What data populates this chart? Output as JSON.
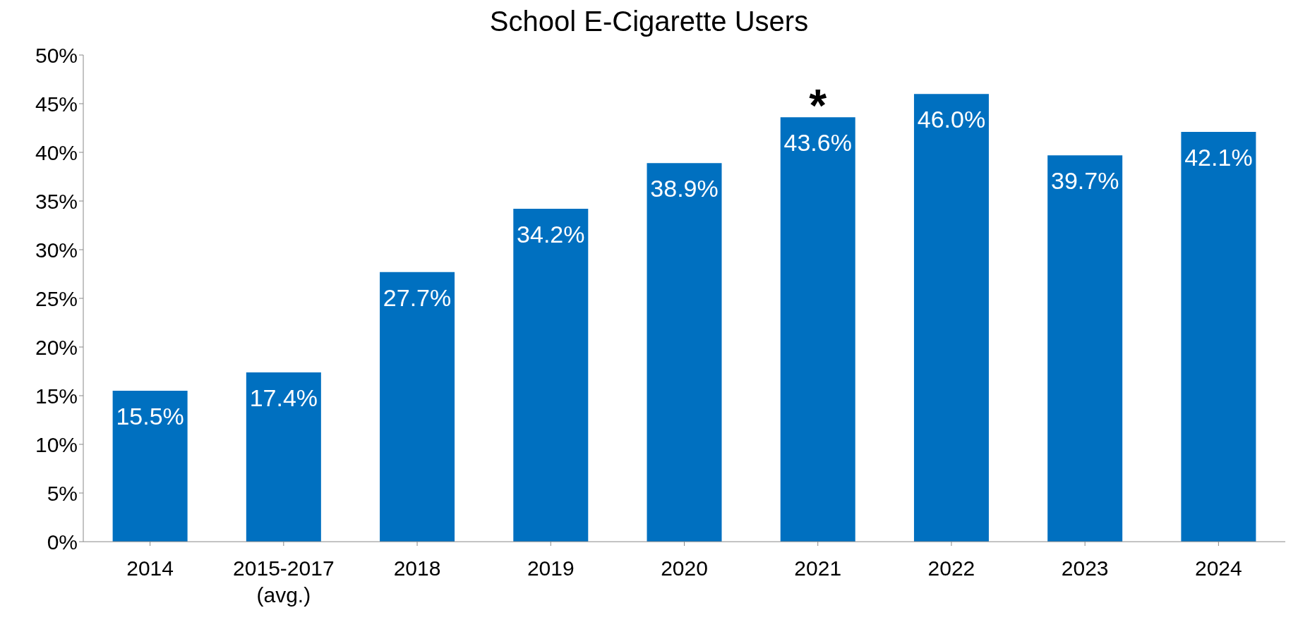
{
  "chart_data": {
    "type": "bar",
    "title": "School E-Cigarette Users",
    "categories": [
      "2014",
      "2015-2017 (avg.)",
      "2018",
      "2019",
      "2020",
      "2021",
      "2022",
      "2023",
      "2024"
    ],
    "values": [
      15.5,
      17.4,
      27.7,
      34.2,
      38.9,
      43.6,
      46.0,
      39.7,
      42.1
    ],
    "value_labels": [
      "15.5%",
      "17.4%",
      "27.7%",
      "34.2%",
      "38.9%",
      "43.6%",
      "46.0%",
      "39.7%",
      "42.1%"
    ],
    "color": "#0070c0",
    "ylim": [
      0,
      50
    ],
    "yticks": [
      {
        "value": 0,
        "label": "0%"
      },
      {
        "value": 5,
        "label": "5%"
      },
      {
        "value": 10,
        "label": "10%"
      },
      {
        "value": 15,
        "label": "15%"
      },
      {
        "value": 20,
        "label": "20%"
      },
      {
        "value": 25,
        "label": "25%"
      },
      {
        "value": 30,
        "label": "30%"
      },
      {
        "value": 35,
        "label": "35%"
      },
      {
        "value": 40,
        "label": "40%"
      },
      {
        "value": 45,
        "label": "45%"
      },
      {
        "value": 50,
        "label": "50%"
      }
    ],
    "annotations": [
      {
        "text": "*",
        "x": "2021",
        "y": 43.6
      }
    ],
    "grid": false,
    "legend": false
  }
}
